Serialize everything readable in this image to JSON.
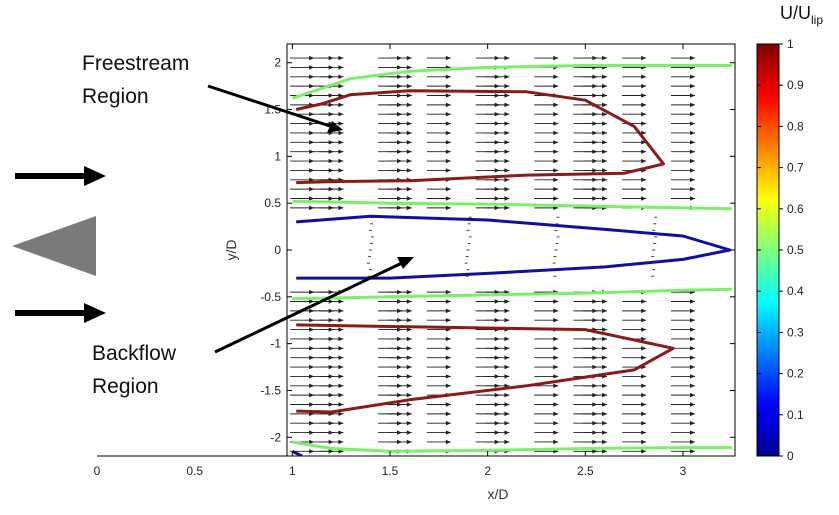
{
  "chart_data": {
    "type": "vector-field-contour",
    "xlabel": "x/D",
    "ylabel": "y/D",
    "xlim": [
      0,
      3.25
    ],
    "ylim": [
      -2.2,
      2.2
    ],
    "plot_xlim": [
      1,
      3.25
    ],
    "x_ticks": [
      "0",
      "0.5",
      "1",
      "1.5",
      "2",
      "2.5",
      "3"
    ],
    "x_tick_values": [
      0,
      0.5,
      1,
      1.5,
      2,
      2.5,
      3
    ],
    "y_ticks": [
      "2",
      "1.5",
      "1",
      "0.5",
      "0",
      "-0.5",
      "-1",
      "-1.5",
      "-2"
    ],
    "y_tick_values": [
      2,
      1.5,
      1,
      0.5,
      0,
      -0.5,
      -1,
      -1.5,
      -2
    ],
    "vector_columns_x": [
      1.05,
      1.15,
      1.2,
      1.5,
      1.55,
      1.75,
      2.0,
      2.05,
      2.3,
      2.5,
      2.55,
      2.75,
      3.0
    ],
    "vector_rows_y": [
      2.05,
      1.95,
      1.85,
      1.75,
      1.65,
      1.55,
      1.45,
      1.35,
      1.25,
      1.15,
      1.05,
      0.95,
      0.85,
      0.75,
      0.65,
      0.55,
      0.45,
      -0.45,
      -0.55,
      -0.65,
      -0.75,
      -0.85,
      -0.95,
      -1.05,
      -1.15,
      -1.25,
      -1.35,
      -1.45,
      -1.55,
      -1.65,
      -1.75,
      -1.85,
      -1.95,
      -2.05,
      -2.15
    ],
    "backflow_vectors_x": [
      1.4,
      1.9,
      2.35,
      2.85
    ],
    "contours": [
      {
        "level": 0.5,
        "color": "#7CF06A",
        "points": [
          [
            1,
            1.62
          ],
          [
            1.3,
            1.83
          ],
          [
            1.6,
            1.91
          ],
          [
            2.0,
            1.95
          ],
          [
            2.5,
            1.97
          ],
          [
            3.0,
            1.97
          ],
          [
            3.25,
            1.97
          ]
        ]
      },
      {
        "level": 0.5,
        "color": "#7CF06A",
        "points": [
          [
            1,
            0.52
          ],
          [
            1.5,
            0.5
          ],
          [
            2.0,
            0.49
          ],
          [
            2.5,
            0.47
          ],
          [
            3.0,
            0.45
          ],
          [
            3.25,
            0.44
          ]
        ]
      },
      {
        "level": 0.5,
        "color": "#7CF06A",
        "points": [
          [
            1,
            -0.52
          ],
          [
            1.5,
            -0.5
          ],
          [
            2.0,
            -0.48
          ],
          [
            2.5,
            -0.46
          ],
          [
            3.0,
            -0.43
          ],
          [
            3.25,
            -0.42
          ]
        ]
      },
      {
        "level": 0.5,
        "color": "#7CF06A",
        "points": [
          [
            1,
            -2.05
          ],
          [
            1.2,
            -2.12
          ],
          [
            1.5,
            -2.15
          ],
          [
            2.0,
            -2.14
          ],
          [
            2.5,
            -2.12
          ],
          [
            3.0,
            -2.11
          ],
          [
            3.25,
            -2.11
          ]
        ]
      },
      {
        "level": 0.95,
        "color": "#8B1A1A",
        "points": [
          [
            1.02,
            1.5
          ],
          [
            1.15,
            1.56
          ],
          [
            1.3,
            1.66
          ],
          [
            1.6,
            1.7
          ],
          [
            2.2,
            1.69
          ],
          [
            2.5,
            1.6
          ],
          [
            2.75,
            1.32
          ],
          [
            2.9,
            0.92
          ],
          [
            2.7,
            0.82
          ],
          [
            2.2,
            0.8
          ],
          [
            1.6,
            0.74
          ],
          [
            1.2,
            0.73
          ],
          [
            1.02,
            0.72
          ]
        ]
      },
      {
        "level": 0.95,
        "color": "#8B1A1A",
        "points": [
          [
            1.02,
            -0.8
          ],
          [
            1.6,
            -0.82
          ],
          [
            2.5,
            -0.85
          ],
          [
            2.95,
            -1.05
          ],
          [
            2.75,
            -1.28
          ],
          [
            2.2,
            -1.45
          ],
          [
            1.6,
            -1.6
          ],
          [
            1.2,
            -1.73
          ],
          [
            1.02,
            -1.72
          ]
        ]
      },
      {
        "level": 0.1,
        "color": "#1010A0",
        "points": [
          [
            1.02,
            0.3
          ],
          [
            1.4,
            0.36
          ],
          [
            2.0,
            0.32
          ],
          [
            2.6,
            0.22
          ],
          [
            3.0,
            0.15
          ],
          [
            3.24,
            0.0
          ],
          [
            3.0,
            -0.1
          ],
          [
            2.6,
            -0.18
          ],
          [
            2.0,
            -0.25
          ],
          [
            1.5,
            -0.3
          ],
          [
            1.02,
            -0.3
          ]
        ]
      },
      {
        "level": 0.1,
        "color": "#1010A0",
        "points": [
          [
            1.0,
            -2.15
          ],
          [
            1.05,
            -2.2
          ]
        ]
      }
    ],
    "colorbar": {
      "title": "U/U",
      "title_subscript": "lip",
      "range": [
        0,
        1
      ],
      "ticks": [
        "1",
        "0.9",
        "0.8",
        "0.7",
        "0.6",
        "0.5",
        "0.4",
        "0.3",
        "0.2",
        "0.1",
        "0"
      ],
      "tick_values": [
        1,
        0.9,
        0.8,
        0.7,
        0.6,
        0.5,
        0.4,
        0.3,
        0.2,
        0.1,
        0
      ],
      "colormap": "jet"
    },
    "annotations": [
      {
        "text": "Freestream",
        "line": 1,
        "arrow_from": [
          0.55,
          1.85
        ],
        "arrow_to": [
          1.28,
          1.35
        ]
      },
      {
        "text": "Region",
        "line": 2
      },
      {
        "text": "Backflow",
        "line": 1,
        "arrow_from": [
          0.7,
          -1.1
        ],
        "arrow_to": [
          1.65,
          -0.1
        ]
      },
      {
        "text": "Region",
        "line": 2
      }
    ],
    "inflow_arrows_y": [
      0.8,
      -0.7
    ],
    "bluff_body": "triangle"
  }
}
